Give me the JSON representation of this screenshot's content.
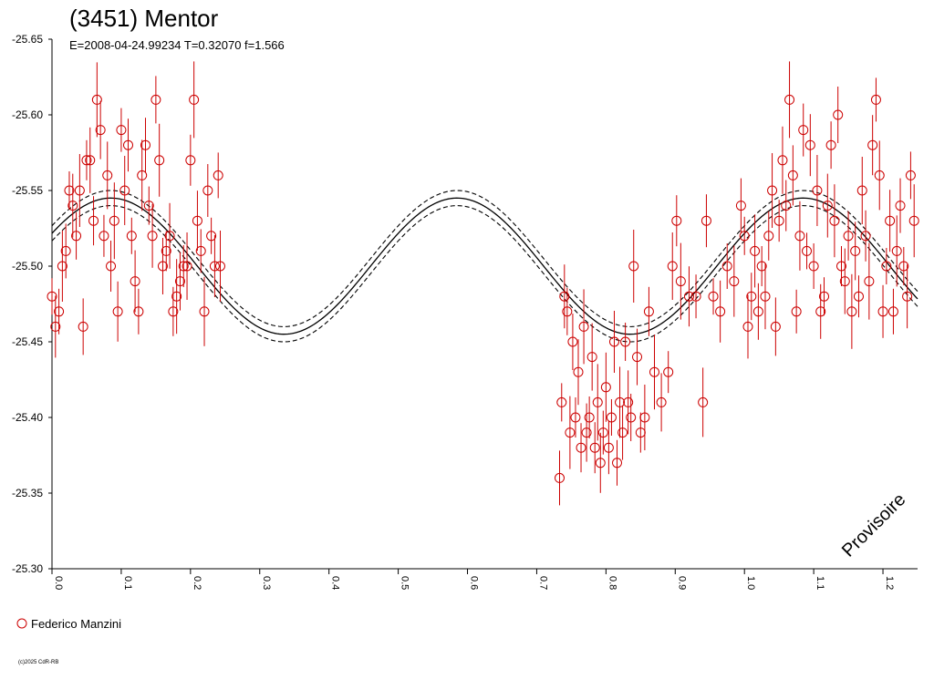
{
  "chart_data": {
    "type": "scatter",
    "title": "(3451) Mentor",
    "subtitle": "E=2008-04-24.99234    T=0.32070    f=1.566",
    "xlabel": "",
    "ylabel": "",
    "xlim": [
      0.0,
      1.25
    ],
    "ylim": [
      -25.3,
      -25.65
    ],
    "x_ticks": [
      "0.0",
      "0.1",
      "0.2",
      "0.3",
      "0.4",
      "0.5",
      "0.6",
      "0.7",
      "0.8",
      "0.9",
      "1.0",
      "1.1",
      "1.2"
    ],
    "y_ticks": [
      "-25.65",
      "-25.60",
      "-25.55",
      "-25.50",
      "-25.45",
      "-25.40",
      "-25.35",
      "-25.30"
    ],
    "legend_position": "bottom-left",
    "annotation": "Provisoire",
    "copyright": "(c)2025 CdR-RB",
    "model": {
      "name": "",
      "mean": -25.5,
      "amplitude": 0.045,
      "peak_phase": 0.085,
      "harmonics": 2,
      "uncertainty": 0.005
    },
    "series": [
      {
        "name": "Federico Manzini",
        "color": "#cc0000",
        "marker": "open-circle",
        "points": [
          [
            0.0,
            -25.48
          ],
          [
            0.005,
            -25.46
          ],
          [
            0.01,
            -25.47
          ],
          [
            0.015,
            -25.5
          ],
          [
            0.02,
            -25.51
          ],
          [
            0.025,
            -25.55
          ],
          [
            0.03,
            -25.54
          ],
          [
            0.035,
            -25.52
          ],
          [
            0.04,
            -25.55
          ],
          [
            0.045,
            -25.46
          ],
          [
            0.05,
            -25.57
          ],
          [
            0.055,
            -25.57
          ],
          [
            0.06,
            -25.53
          ],
          [
            0.065,
            -25.61
          ],
          [
            0.07,
            -25.59
          ],
          [
            0.075,
            -25.52
          ],
          [
            0.08,
            -25.56
          ],
          [
            0.085,
            -25.5
          ],
          [
            0.09,
            -25.53
          ],
          [
            0.095,
            -25.47
          ],
          [
            0.1,
            -25.59
          ],
          [
            0.105,
            -25.55
          ],
          [
            0.11,
            -25.58
          ],
          [
            0.115,
            -25.52
          ],
          [
            0.12,
            -25.49
          ],
          [
            0.125,
            -25.47
          ],
          [
            0.13,
            -25.56
          ],
          [
            0.135,
            -25.58
          ],
          [
            0.14,
            -25.54
          ],
          [
            0.145,
            -25.52
          ],
          [
            0.15,
            -25.61
          ],
          [
            0.155,
            -25.57
          ],
          [
            0.16,
            -25.5
          ],
          [
            0.165,
            -25.51
          ],
          [
            0.17,
            -25.52
          ],
          [
            0.175,
            -25.47
          ],
          [
            0.18,
            -25.48
          ],
          [
            0.185,
            -25.49
          ],
          [
            0.19,
            -25.5
          ],
          [
            0.195,
            -25.5
          ],
          [
            0.2,
            -25.57
          ],
          [
            0.205,
            -25.61
          ],
          [
            0.21,
            -25.53
          ],
          [
            0.215,
            -25.51
          ],
          [
            0.22,
            -25.47
          ],
          [
            0.225,
            -25.55
          ],
          [
            0.23,
            -25.52
          ],
          [
            0.235,
            -25.5
          ],
          [
            0.24,
            -25.56
          ],
          [
            0.243,
            -25.5
          ],
          [
            0.733,
            -25.36
          ],
          [
            0.736,
            -25.41
          ],
          [
            0.74,
            -25.48
          ],
          [
            0.744,
            -25.47
          ],
          [
            0.748,
            -25.39
          ],
          [
            0.752,
            -25.45
          ],
          [
            0.756,
            -25.4
          ],
          [
            0.76,
            -25.43
          ],
          [
            0.764,
            -25.38
          ],
          [
            0.768,
            -25.46
          ],
          [
            0.772,
            -25.39
          ],
          [
            0.776,
            -25.4
          ],
          [
            0.78,
            -25.44
          ],
          [
            0.784,
            -25.38
          ],
          [
            0.788,
            -25.41
          ],
          [
            0.792,
            -25.37
          ],
          [
            0.796,
            -25.39
          ],
          [
            0.8,
            -25.42
          ],
          [
            0.804,
            -25.38
          ],
          [
            0.808,
            -25.4
          ],
          [
            0.812,
            -25.45
          ],
          [
            0.816,
            -25.37
          ],
          [
            0.82,
            -25.41
          ],
          [
            0.824,
            -25.39
          ],
          [
            0.828,
            -25.45
          ],
          [
            0.832,
            -25.41
          ],
          [
            0.836,
            -25.4
          ],
          [
            0.84,
            -25.5
          ],
          [
            0.845,
            -25.44
          ],
          [
            0.85,
            -25.39
          ],
          [
            0.856,
            -25.4
          ],
          [
            0.862,
            -25.47
          ],
          [
            0.87,
            -25.43
          ],
          [
            0.88,
            -25.41
          ],
          [
            0.89,
            -25.43
          ],
          [
            0.896,
            -25.5
          ],
          [
            0.902,
            -25.53
          ],
          [
            0.908,
            -25.49
          ],
          [
            0.92,
            -25.48
          ],
          [
            0.93,
            -25.48
          ],
          [
            0.94,
            -25.41
          ],
          [
            0.945,
            -25.53
          ],
          [
            0.955,
            -25.48
          ],
          [
            0.965,
            -25.47
          ],
          [
            0.975,
            -25.5
          ],
          [
            0.985,
            -25.49
          ],
          [
            0.995,
            -25.54
          ],
          [
            1.0,
            -25.52
          ],
          [
            1.005,
            -25.46
          ],
          [
            1.01,
            -25.48
          ],
          [
            1.015,
            -25.51
          ],
          [
            1.02,
            -25.47
          ],
          [
            1.025,
            -25.5
          ],
          [
            1.03,
            -25.48
          ],
          [
            1.035,
            -25.52
          ],
          [
            1.04,
            -25.55
          ],
          [
            1.045,
            -25.46
          ],
          [
            1.05,
            -25.53
          ],
          [
            1.055,
            -25.57
          ],
          [
            1.06,
            -25.54
          ],
          [
            1.065,
            -25.61
          ],
          [
            1.07,
            -25.56
          ],
          [
            1.075,
            -25.47
          ],
          [
            1.08,
            -25.52
          ],
          [
            1.085,
            -25.59
          ],
          [
            1.09,
            -25.51
          ],
          [
            1.095,
            -25.58
          ],
          [
            1.1,
            -25.5
          ],
          [
            1.105,
            -25.55
          ],
          [
            1.11,
            -25.47
          ],
          [
            1.115,
            -25.48
          ],
          [
            1.12,
            -25.54
          ],
          [
            1.125,
            -25.58
          ],
          [
            1.13,
            -25.53
          ],
          [
            1.135,
            -25.6
          ],
          [
            1.14,
            -25.5
          ],
          [
            1.145,
            -25.49
          ],
          [
            1.15,
            -25.52
          ],
          [
            1.155,
            -25.47
          ],
          [
            1.16,
            -25.51
          ],
          [
            1.165,
            -25.48
          ],
          [
            1.17,
            -25.55
          ],
          [
            1.175,
            -25.52
          ],
          [
            1.18,
            -25.49
          ],
          [
            1.185,
            -25.58
          ],
          [
            1.19,
            -25.61
          ],
          [
            1.195,
            -25.56
          ],
          [
            1.2,
            -25.47
          ],
          [
            1.205,
            -25.5
          ],
          [
            1.21,
            -25.53
          ],
          [
            1.215,
            -25.47
          ],
          [
            1.22,
            -25.51
          ],
          [
            1.225,
            -25.54
          ],
          [
            1.23,
            -25.5
          ],
          [
            1.235,
            -25.48
          ],
          [
            1.24,
            -25.56
          ],
          [
            1.245,
            -25.53
          ]
        ]
      }
    ]
  }
}
